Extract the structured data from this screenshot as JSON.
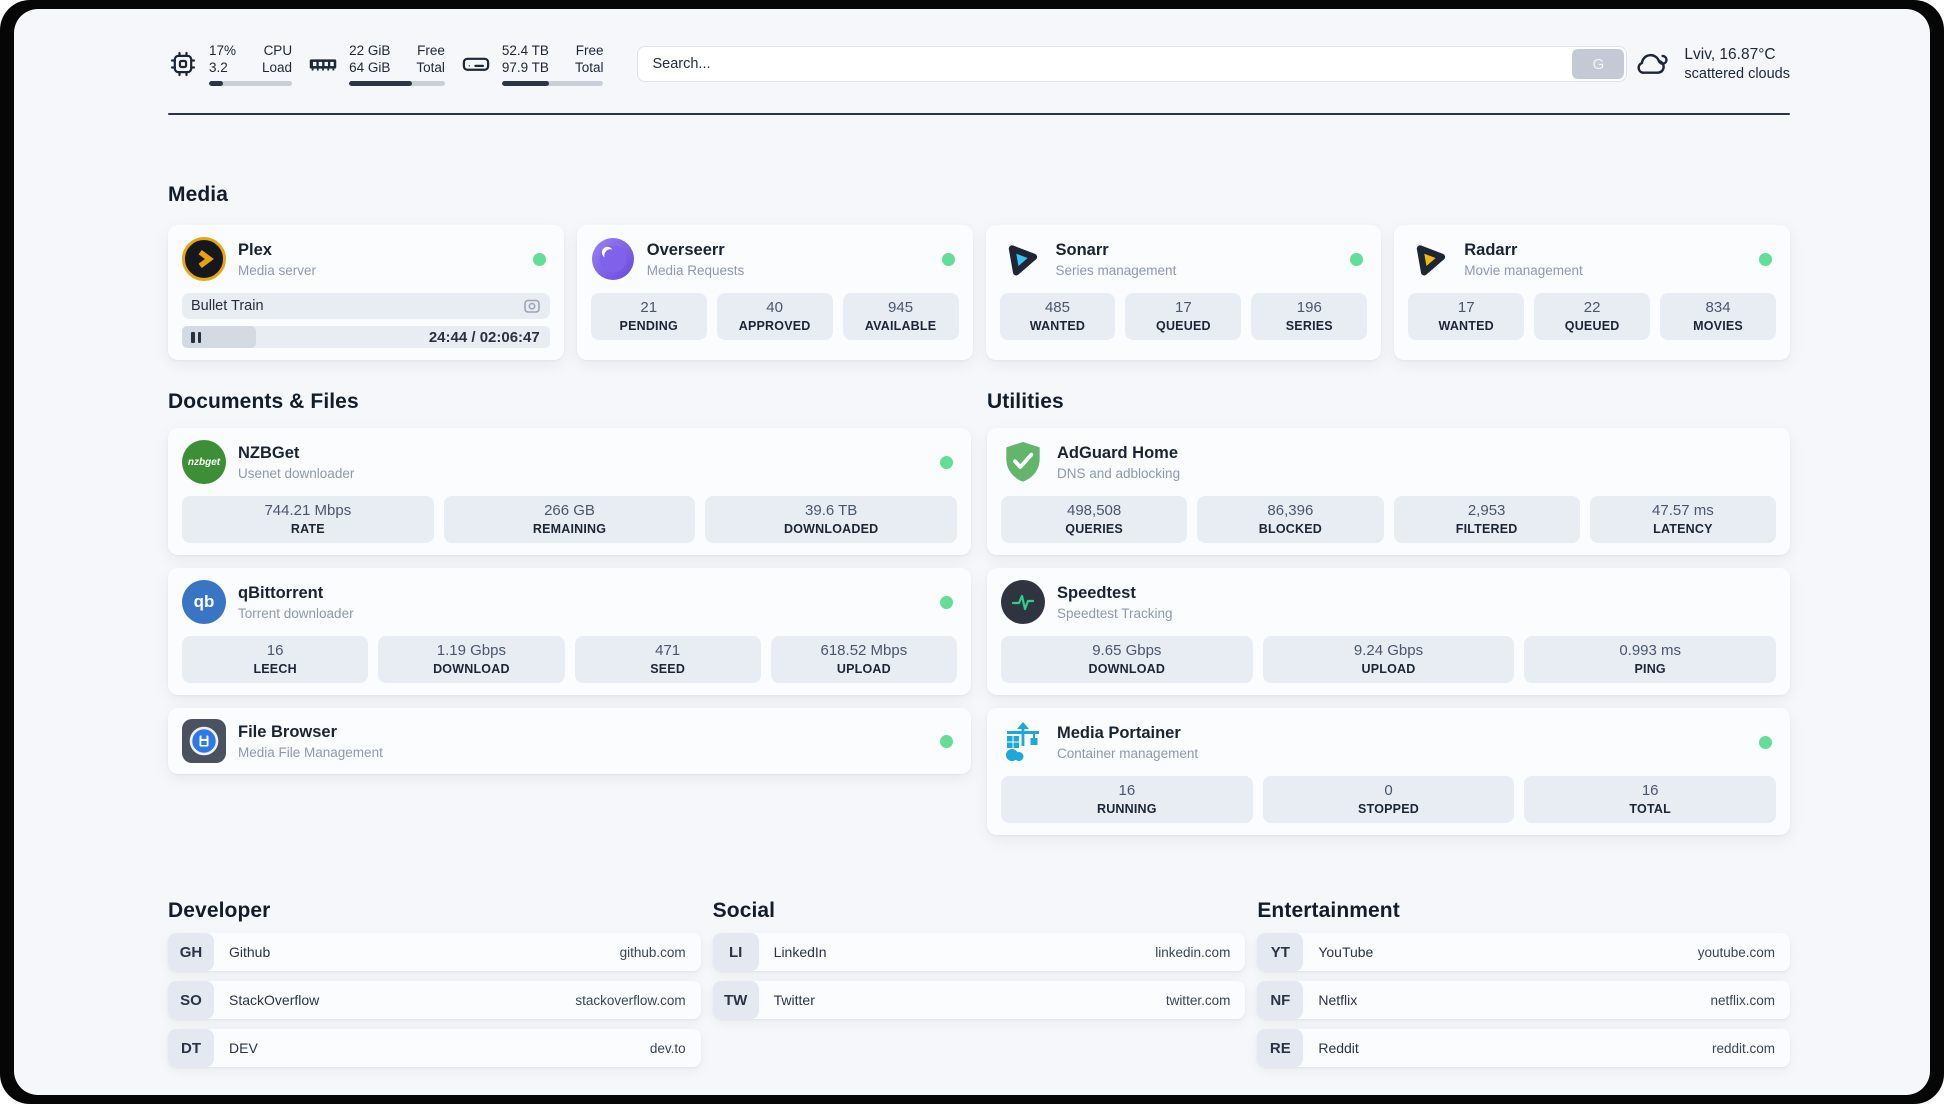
{
  "header": {
    "system_stats": [
      {
        "icon": "cpu-icon",
        "values": [
          "17%",
          "3.2"
        ],
        "labels": [
          "CPU",
          "Load"
        ],
        "progress": 17
      },
      {
        "icon": "ram-icon",
        "values": [
          "22 GiB",
          "64 GiB"
        ],
        "labels": [
          "Free",
          "Total"
        ],
        "progress": 66
      },
      {
        "icon": "disk-icon",
        "values": [
          "52.4 TB",
          "97.9 TB"
        ],
        "labels": [
          "Free",
          "Total"
        ],
        "progress": 46
      }
    ],
    "search": {
      "placeholder": "Search...",
      "button_label": "G"
    },
    "weather": {
      "icon": "cloud-icon",
      "location_temp": "Lviv, 16.87°C",
      "condition": "scattered clouds"
    }
  },
  "media": {
    "title": "Media",
    "plex": {
      "icon": "plex-icon",
      "name": "Plex",
      "desc": "Media server",
      "status": "online",
      "now_playing": "Bullet Train",
      "time": "24:44 / 02:06:47",
      "progress": 20
    },
    "apps": [
      {
        "icon": "overseerr-icon",
        "name": "Overseerr",
        "desc": "Media Requests",
        "status": "online",
        "stats": [
          {
            "value": "21",
            "label": "PENDING"
          },
          {
            "value": "40",
            "label": "APPROVED"
          },
          {
            "value": "945",
            "label": "AVAILABLE"
          }
        ]
      },
      {
        "icon": "sonarr-icon",
        "name": "Sonarr",
        "desc": "Series management",
        "status": "online",
        "stats": [
          {
            "value": "485",
            "label": "WANTED"
          },
          {
            "value": "17",
            "label": "QUEUED"
          },
          {
            "value": "196",
            "label": "SERIES"
          }
        ]
      },
      {
        "icon": "radarr-icon",
        "name": "Radarr",
        "desc": "Movie management",
        "status": "online",
        "stats": [
          {
            "value": "17",
            "label": "WANTED"
          },
          {
            "value": "22",
            "label": "QUEUED"
          },
          {
            "value": "834",
            "label": "MOVIES"
          }
        ]
      }
    ]
  },
  "documents": {
    "title": "Documents & Files",
    "apps": [
      {
        "icon": "nzbget-icon",
        "name": "NZBGet",
        "desc": "Usenet downloader",
        "status": "online",
        "stats": [
          {
            "value": "744.21 Mbps",
            "label": "RATE"
          },
          {
            "value": "266 GB",
            "label": "REMAINING"
          },
          {
            "value": "39.6 TB",
            "label": "DOWNLOADED"
          }
        ]
      },
      {
        "icon": "qbittorrent-icon",
        "name": "qBittorrent",
        "desc": "Torrent downloader",
        "status": "online",
        "stats": [
          {
            "value": "16",
            "label": "LEECH"
          },
          {
            "value": "1.19 Gbps",
            "label": "DOWNLOAD"
          },
          {
            "value": "471",
            "label": "SEED"
          },
          {
            "value": "618.52 Mbps",
            "label": "UPLOAD"
          }
        ]
      },
      {
        "icon": "filebrowser-icon",
        "name": "File Browser",
        "desc": "Media File Management",
        "status": "online",
        "stats": []
      }
    ]
  },
  "utilities": {
    "title": "Utilities",
    "apps": [
      {
        "icon": "adguard-icon",
        "name": "AdGuard Home",
        "desc": "DNS and adblocking",
        "stats": [
          {
            "value": "498,508",
            "label": "QUERIES"
          },
          {
            "value": "86,396",
            "label": "BLOCKED"
          },
          {
            "value": "2,953",
            "label": "FILTERED"
          },
          {
            "value": "47.57 ms",
            "label": "LATENCY"
          }
        ]
      },
      {
        "icon": "speedtest-icon",
        "name": "Speedtest",
        "desc": "Speedtest Tracking",
        "stats": [
          {
            "value": "9.65 Gbps",
            "label": "DOWNLOAD"
          },
          {
            "value": "9.24 Gbps",
            "label": "UPLOAD"
          },
          {
            "value": "0.993 ms",
            "label": "PING"
          }
        ]
      },
      {
        "icon": "portainer-icon",
        "name": "Media Portainer",
        "desc": "Container management",
        "status": "online",
        "stats": [
          {
            "value": "16",
            "label": "RUNNING"
          },
          {
            "value": "0",
            "label": "STOPPED"
          },
          {
            "value": "16",
            "label": "TOTAL"
          }
        ]
      }
    ]
  },
  "link_sections": [
    {
      "title": "Developer",
      "links": [
        {
          "abbr": "GH",
          "name": "Github",
          "url": "github.com"
        },
        {
          "abbr": "SO",
          "name": "StackOverflow",
          "url": "stackoverflow.com"
        },
        {
          "abbr": "DT",
          "name": "DEV",
          "url": "dev.to"
        }
      ]
    },
    {
      "title": "Social",
      "links": [
        {
          "abbr": "LI",
          "name": "LinkedIn",
          "url": "linkedin.com"
        },
        {
          "abbr": "TW",
          "name": "Twitter",
          "url": "twitter.com"
        }
      ]
    },
    {
      "title": "Entertainment",
      "links": [
        {
          "abbr": "YT",
          "name": "YouTube",
          "url": "youtube.com"
        },
        {
          "abbr": "NF",
          "name": "Netflix",
          "url": "netflix.com"
        },
        {
          "abbr": "RE",
          "name": "Reddit",
          "url": "reddit.com"
        }
      ]
    }
  ],
  "colors": {
    "status_online": "#62de99",
    "plex_amber": "#e9a40d",
    "sonarr_cyan": "#36c3f1",
    "radarr_amber": "#f5b60e",
    "adguard_green": "#63b56c",
    "speedtest_pulse": "#2ecf8e",
    "portainer_blue": "#1ba8dd",
    "qbittorrent_blue": "#3876c5",
    "nzbget_green": "#3d8f35",
    "filebrowser_blue": "#2d79e5",
    "header_bar_fill": "#2b3547"
  }
}
